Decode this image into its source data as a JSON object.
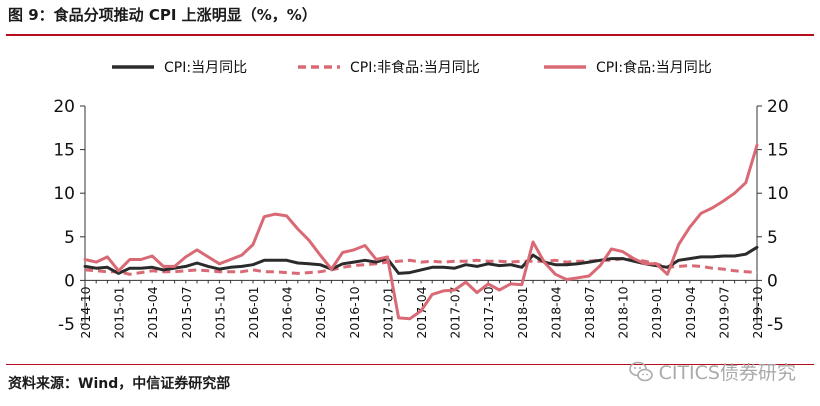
{
  "header": {
    "title": "图 9：食品分项推动 CPI 上涨明显（%，%）"
  },
  "footer": {
    "source": "资料来源：Wind，中信证券研究部",
    "watermark": "CITICS债券研究"
  },
  "icons": {
    "watermark": "wechat-icon"
  },
  "colors": {
    "accent": "#b50d1f",
    "black_series": "#2b2b2b",
    "pink_series": "#d96a75"
  },
  "chart_data": {
    "type": "line",
    "title": "",
    "ylim": [
      -5,
      20
    ],
    "y_ticks": [
      -5,
      0,
      5,
      10,
      15,
      20
    ],
    "y2lim": [
      -5,
      20
    ],
    "grid": false,
    "legend": "top",
    "x": [
      "2014-10",
      "2014-11",
      "2014-12",
      "2015-01",
      "2015-02",
      "2015-03",
      "2015-04",
      "2015-05",
      "2015-06",
      "2015-07",
      "2015-08",
      "2015-09",
      "2015-10",
      "2015-11",
      "2015-12",
      "2016-01",
      "2016-02",
      "2016-03",
      "2016-04",
      "2016-05",
      "2016-06",
      "2016-07",
      "2016-08",
      "2016-09",
      "2016-10",
      "2016-11",
      "2016-12",
      "2017-01",
      "2017-02",
      "2017-03",
      "2017-04",
      "2017-05",
      "2017-06",
      "2017-07",
      "2017-08",
      "2017-09",
      "2017-10",
      "2017-11",
      "2017-12",
      "2018-01",
      "2018-02",
      "2018-03",
      "2018-04",
      "2018-05",
      "2018-06",
      "2018-07",
      "2018-08",
      "2018-09",
      "2018-10",
      "2018-11",
      "2018-12",
      "2019-01",
      "2019-02",
      "2019-03",
      "2019-04",
      "2019-05",
      "2019-06",
      "2019-07",
      "2019-08",
      "2019-09",
      "2019-10"
    ],
    "x_tick_labels": [
      "2014-10",
      "2015-01",
      "2015-04",
      "2015-07",
      "2015-10",
      "2016-01",
      "2016-04",
      "2016-07",
      "2016-10",
      "2017-01",
      "2017-04",
      "2017-07",
      "2017-10",
      "2018-01",
      "2018-04",
      "2018-07",
      "2018-10",
      "2019-01",
      "2019-04",
      "2019-07",
      "2019-10"
    ],
    "series": [
      {
        "name": "CPI:当月同比",
        "style": "solid",
        "color": "#2b2b2b",
        "values": [
          1.6,
          1.4,
          1.5,
          0.8,
          1.4,
          1.4,
          1.5,
          1.2,
          1.4,
          1.6,
          2.0,
          1.6,
          1.3,
          1.5,
          1.6,
          1.8,
          2.3,
          2.3,
          2.3,
          2.0,
          1.9,
          1.8,
          1.3,
          1.9,
          2.1,
          2.3,
          2.1,
          2.5,
          0.8,
          0.9,
          1.2,
          1.5,
          1.5,
          1.4,
          1.8,
          1.6,
          1.9,
          1.7,
          1.8,
          1.5,
          2.9,
          2.1,
          1.8,
          1.8,
          1.9,
          2.1,
          2.3,
          2.5,
          2.5,
          2.2,
          1.9,
          1.7,
          1.5,
          2.3,
          2.5,
          2.7,
          2.7,
          2.8,
          2.8,
          3.0,
          3.8
        ]
      },
      {
        "name": "CPI:非食品:当月同比",
        "style": "dashed",
        "color": "#d96a75",
        "values": [
          1.2,
          1.1,
          1.0,
          1.0,
          0.7,
          0.9,
          1.1,
          1.0,
          1.0,
          1.1,
          1.2,
          1.1,
          1.0,
          1.0,
          1.0,
          1.2,
          1.0,
          1.0,
          0.9,
          0.8,
          0.9,
          1.0,
          1.2,
          1.5,
          1.7,
          1.8,
          1.9,
          2.1,
          2.2,
          2.3,
          2.1,
          2.2,
          2.1,
          2.2,
          2.2,
          2.3,
          2.2,
          2.2,
          2.1,
          2.2,
          2.2,
          2.2,
          2.3,
          2.1,
          2.2,
          2.2,
          2.3,
          2.3,
          2.5,
          2.4,
          2.2,
          1.9,
          1.5,
          1.6,
          1.7,
          1.6,
          1.4,
          1.3,
          1.1,
          1.0,
          0.9
        ]
      },
      {
        "name": "CPI:食品:当月同比",
        "style": "solid",
        "color": "#d96a75",
        "values": [
          2.4,
          2.1,
          2.7,
          1.1,
          2.4,
          2.4,
          2.8,
          1.6,
          1.6,
          2.7,
          3.5,
          2.7,
          1.9,
          2.4,
          2.9,
          4.1,
          7.3,
          7.6,
          7.4,
          5.9,
          4.6,
          2.9,
          1.3,
          3.2,
          3.5,
          4.0,
          2.4,
          2.7,
          -4.3,
          -4.4,
          -3.5,
          -1.6,
          -1.2,
          -1.1,
          -0.2,
          -1.4,
          -0.4,
          -1.1,
          -0.4,
          -0.5,
          4.4,
          2.1,
          0.7,
          0.1,
          0.3,
          0.5,
          1.7,
          3.6,
          3.3,
          2.5,
          1.9,
          1.9,
          0.7,
          4.1,
          6.1,
          7.7,
          8.3,
          9.1,
          10.0,
          11.2,
          15.5
        ]
      }
    ]
  }
}
